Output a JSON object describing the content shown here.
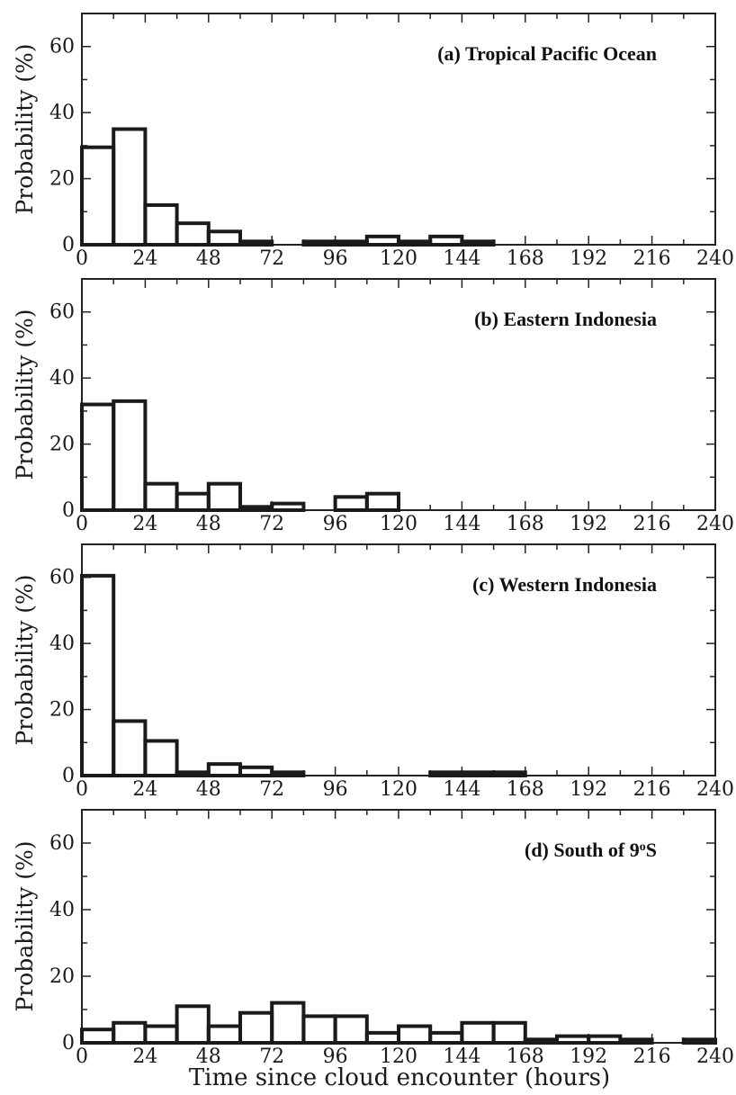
{
  "chart_data": [
    {
      "type": "bar",
      "title": "(a) Tropical Pacific Ocean",
      "ylabel": "Probability (%)",
      "xlabel": "",
      "xlim": [
        0,
        240
      ],
      "ylim": [
        0,
        70
      ],
      "bin_width_hours": 12,
      "x_ticks": [
        "0",
        "24",
        "48",
        "72",
        "96",
        "120",
        "144",
        "168",
        "192",
        "216",
        "240"
      ],
      "y_ticks": [
        "0",
        "20",
        "40",
        "60"
      ],
      "values": [
        29.5,
        35,
        12,
        6.5,
        4,
        1,
        0,
        1,
        1,
        2.5,
        1,
        2.5,
        1,
        0,
        0,
        0,
        0,
        0,
        0,
        0
      ]
    },
    {
      "type": "bar",
      "title": "(b) Eastern Indonesia",
      "ylabel": "Probability (%)",
      "xlabel": "",
      "xlim": [
        0,
        240
      ],
      "ylim": [
        0,
        70
      ],
      "bin_width_hours": 12,
      "x_ticks": [
        "0",
        "24",
        "48",
        "72",
        "96",
        "120",
        "144",
        "168",
        "192",
        "216",
        "240"
      ],
      "y_ticks": [
        "0",
        "20",
        "40",
        "60"
      ],
      "values": [
        32,
        33,
        8,
        5,
        8,
        1,
        2,
        0,
        4,
        5,
        0,
        0,
        0,
        0,
        0,
        0,
        0,
        0,
        0,
        0
      ]
    },
    {
      "type": "bar",
      "title": "(c) Western Indonesia",
      "ylabel": "Probability (%)",
      "xlabel": "",
      "xlim": [
        0,
        240
      ],
      "ylim": [
        0,
        70
      ],
      "bin_width_hours": 12,
      "x_ticks": [
        "0",
        "24",
        "48",
        "72",
        "96",
        "120",
        "144",
        "168",
        "192",
        "216",
        "240"
      ],
      "y_ticks": [
        "0",
        "20",
        "40",
        "60"
      ],
      "values": [
        60.5,
        16.5,
        10.5,
        1,
        3.5,
        2.5,
        1,
        0,
        0,
        0,
        0,
        1,
        1,
        1,
        0,
        0,
        0,
        0,
        0,
        0
      ]
    },
    {
      "type": "bar",
      "title": "(d) South of 9",
      "title_sup": "o",
      "title_tail": "S",
      "ylabel": "Probability (%)",
      "xlabel": "Time since cloud encounter (hours)",
      "xlim": [
        0,
        240
      ],
      "ylim": [
        0,
        70
      ],
      "bin_width_hours": 12,
      "x_ticks": [
        "0",
        "24",
        "48",
        "72",
        "96",
        "120",
        "144",
        "168",
        "192",
        "216",
        "240"
      ],
      "y_ticks": [
        "0",
        "20",
        "40",
        "60"
      ],
      "values": [
        4,
        6,
        5,
        11,
        5,
        9,
        12,
        8,
        8,
        3,
        5,
        3,
        6,
        6,
        1,
        2,
        2,
        1,
        0,
        1
      ]
    }
  ]
}
